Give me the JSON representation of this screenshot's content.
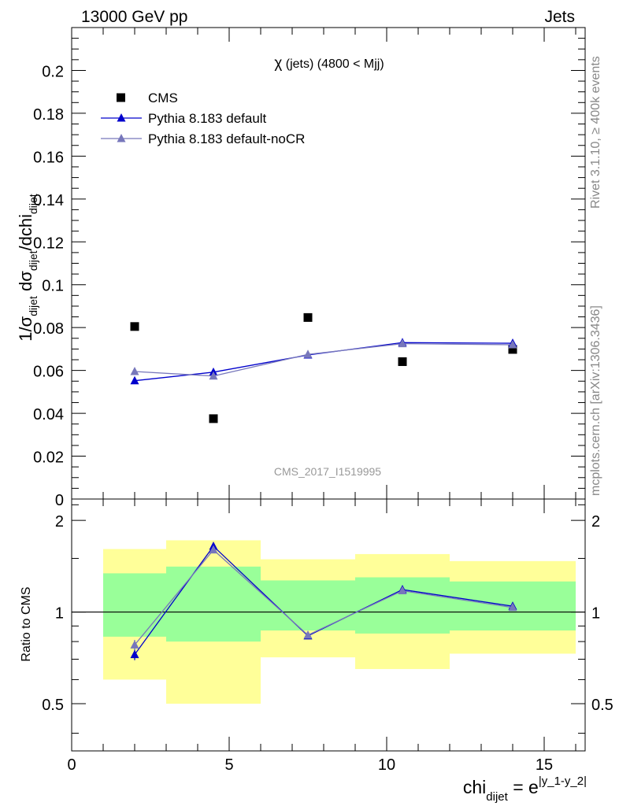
{
  "header": {
    "energy_label": "13000 GeV pp",
    "category_label": "Jets"
  },
  "side_labels": {
    "rivet": "Rivet 3.1.10, ≥ 400k events",
    "mcplots": "mcplots.cern.ch [arXiv:1306.3436]"
  },
  "chart_data": [
    {
      "type": "scatter",
      "panel": "main",
      "title_symbol": "χ",
      "title_rest": " (jets) (4800 < Mjj)",
      "watermark": "CMS_2017_I1519995",
      "ylabel": "1/σ_dijet dσ_dijet/dchi_dijet",
      "ylabel_parts": {
        "a": "1/σ",
        "a_sub": "dijet",
        "b": " dσ",
        "b_sub": "dijet",
        "c": "/dchi",
        "c_sub": "dijet"
      },
      "xlim": [
        0,
        16.3
      ],
      "ylim": [
        0,
        0.22
      ],
      "yticks": [
        0,
        0.02,
        0.04,
        0.06,
        0.08,
        0.1,
        0.12,
        0.14,
        0.16,
        0.18,
        0.2
      ],
      "ytick_labels": [
        "0",
        "0.02",
        "0.04",
        "0.06",
        "0.08",
        "0.1",
        "0.12",
        "0.14",
        "0.16",
        "0.18",
        "0.2"
      ],
      "legend_position": "top-left",
      "series": [
        {
          "name": "CMS",
          "marker": "square",
          "color": "#000000",
          "x": [
            2,
            4.5,
            7.5,
            10.5,
            14
          ],
          "y": [
            0.0805,
            0.0375,
            0.0847,
            0.0641,
            0.0698
          ],
          "err": [
            0,
            0,
            0,
            0,
            0
          ]
        },
        {
          "name": "Pythia 8.183 default",
          "marker": "triangle",
          "color": "#0000cc",
          "x": [
            2,
            4.5,
            7.5,
            10.5,
            14
          ],
          "y": [
            0.0552,
            0.0592,
            0.0672,
            0.073,
            0.0727
          ],
          "err": [
            0.0015,
            0.0015,
            0.0015,
            0.0015,
            0.0015
          ]
        },
        {
          "name": "Pythia 8.183 default-noCR",
          "marker": "triangle",
          "color": "#7777bb",
          "x": [
            2,
            4.5,
            7.5,
            10.5,
            14
          ],
          "y": [
            0.0595,
            0.0574,
            0.0675,
            0.0725,
            0.072
          ],
          "err": [
            0.0015,
            0.0015,
            0.0015,
            0.0015,
            0.0015
          ]
        }
      ]
    },
    {
      "type": "scatter",
      "panel": "ratio",
      "ylabel": "Ratio to CMS",
      "xlabel_parts": {
        "base": "chi",
        "sub": "dijet",
        "mid": " = e",
        "sup": "|y_1-y_2|"
      },
      "xlim": [
        0,
        16.3
      ],
      "ylim": [
        0.35,
        2.35
      ],
      "yticks": [
        0.5,
        1,
        2
      ],
      "ytick_labels": [
        "0.5",
        "1",
        "2"
      ],
      "xticks": [
        0,
        5,
        10,
        15
      ],
      "xtick_labels": [
        "0",
        "5",
        "10",
        "15"
      ],
      "bands": [
        {
          "x0": 1,
          "x1": 3,
          "green": [
            0.83,
            1.34
          ],
          "yellow": [
            0.6,
            1.61
          ]
        },
        {
          "x0": 3,
          "x1": 6,
          "green": [
            0.8,
            1.41
          ],
          "yellow": [
            0.5,
            1.72
          ]
        },
        {
          "x0": 6,
          "x1": 9,
          "green": [
            0.87,
            1.27
          ],
          "yellow": [
            0.71,
            1.49
          ]
        },
        {
          "x0": 9,
          "x1": 12,
          "green": [
            0.85,
            1.3
          ],
          "yellow": [
            0.65,
            1.55
          ]
        },
        {
          "x0": 12,
          "x1": 16,
          "green": [
            0.87,
            1.26
          ],
          "yellow": [
            0.73,
            1.47
          ]
        }
      ],
      "band_colors": {
        "green": "#99ff99",
        "yellow": "#ffff99"
      },
      "series": [
        {
          "name": "Pythia 8.183 default",
          "color": "#0000cc",
          "x": [
            2,
            4.5,
            7.5,
            10.5,
            14
          ],
          "y": [
            0.725,
            1.645,
            0.835,
            1.185,
            1.045
          ],
          "err": [
            0.03,
            0.04,
            0.02,
            0.025,
            0.025
          ]
        },
        {
          "name": "Pythia 8.183 default-noCR",
          "color": "#7777bb",
          "x": [
            2,
            4.5,
            7.5,
            10.5,
            14
          ],
          "y": [
            0.78,
            1.6,
            0.84,
            1.175,
            1.035
          ],
          "err": [
            0.03,
            0.04,
            0.02,
            0.025,
            0.025
          ]
        }
      ]
    }
  ]
}
